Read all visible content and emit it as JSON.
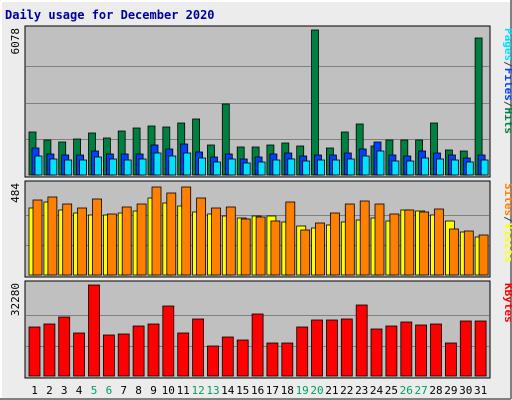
{
  "chart_data": {
    "type": "bar",
    "title": "Daily usage for December 2020",
    "colors": {
      "hits": "#008040",
      "files": "#0040ff",
      "pages": "#00e0ff",
      "visits": "#ffff00",
      "sites": "#ff8000",
      "kbytes": "#ff0000",
      "title": "#0000a0",
      "panel_bg": "#c0c0c0",
      "weekend_label": "#00a060",
      "weekday_label": "#000000"
    },
    "days": [
      "1",
      "2",
      "3",
      "4",
      "5",
      "6",
      "7",
      "8",
      "9",
      "10",
      "11",
      "12",
      "13",
      "14",
      "15",
      "16",
      "17",
      "18",
      "19",
      "20",
      "21",
      "22",
      "23",
      "24",
      "25",
      "26",
      "27",
      "28",
      "29",
      "30",
      "31"
    ],
    "weekend_days": [
      "5",
      "6",
      "12",
      "13",
      "19",
      "20",
      "26",
      "27"
    ],
    "panels": [
      {
        "id": "top",
        "ymax_label": "6078",
        "ymax": 6078,
        "right_labels": [
          "Pages",
          "/",
          "Files",
          "/",
          "Hits"
        ],
        "right_label_colors": [
          "#00e0ff",
          "#404040",
          "#0040ff",
          "#404040",
          "#008040"
        ],
        "series": [
          {
            "name": "Hits",
            "color": "#008040",
            "values": [
              1790,
              1450,
              1380,
              1520,
              1760,
              1560,
              1830,
              1980,
              2040,
              2020,
              2160,
              2350,
              1250,
              2970,
              1170,
              1180,
              1250,
              1330,
              1200,
              6078,
              1150,
              1800,
              2130,
              1200,
              1450,
              1460,
              1480,
              2170,
              1060,
              990,
              5750
            ]
          },
          {
            "name": "Files",
            "color": "#0040ff",
            "values": [
              1120,
              900,
              840,
              850,
              1010,
              900,
              880,
              900,
              1260,
              1090,
              1280,
              980,
              740,
              890,
              680,
              760,
              860,
              930,
              790,
              830,
              820,
              920,
              1080,
              1400,
              820,
              790,
              990,
              920,
              850,
              720,
              820
            ]
          },
          {
            "name": "Pages",
            "color": "#00e0ff",
            "values": [
              800,
              670,
              630,
              640,
              750,
              650,
              640,
              660,
              930,
              800,
              940,
              720,
              550,
              660,
              500,
              560,
              630,
              690,
              580,
              620,
              610,
              680,
              800,
              1020,
              600,
              590,
              730,
              680,
              620,
              530,
              610
            ]
          }
        ]
      },
      {
        "id": "middle",
        "ymax_label": "484",
        "ymax": 484,
        "right_labels": [
          "Sites",
          "/",
          "Visits"
        ],
        "right_label_colors": [
          "#ff8000",
          "#404040",
          "#ffff00"
        ],
        "series": [
          {
            "name": "Visits",
            "color": "#ffff00",
            "values": [
              362,
              392,
              352,
              336,
              325,
              322,
              336,
              343,
              413,
              388,
              370,
              340,
              330,
              318,
              304,
              318,
              318,
              284,
              262,
              255,
              268,
              284,
              298,
              308,
              288,
              350,
              344,
              322,
              290,
              233,
              205
            ]
          },
          {
            "name": "Sites",
            "color": "#ff8000",
            "values": [
              402,
              422,
              380,
              362,
              410,
              330,
              366,
              384,
              472,
              442,
              475,
              412,
              362,
              368,
              302,
              310,
              289,
              395,
              241,
              278,
              336,
              382,
              400,
              384,
              328,
              350,
              340,
              357,
              246,
              238,
              216
            ]
          }
        ]
      },
      {
        "id": "bottom",
        "ymax_label": "32280",
        "ymax": 32280,
        "right_labels": [
          "KBytes"
        ],
        "right_label_colors": [
          "#ff0000"
        ],
        "series": [
          {
            "name": "KBytes",
            "color": "#ff0000",
            "values": [
              17500,
              18500,
              20800,
              15400,
              32280,
              14500,
              14800,
              17900,
              18300,
              24900,
              15400,
              20300,
              10600,
              13900,
              12800,
              22000,
              11700,
              11700,
              17300,
              19700,
              19700,
              20200,
              25200,
              16700,
              17600,
              19200,
              18000,
              18300,
              11700,
              19400,
              19400
            ]
          }
        ]
      }
    ]
  }
}
